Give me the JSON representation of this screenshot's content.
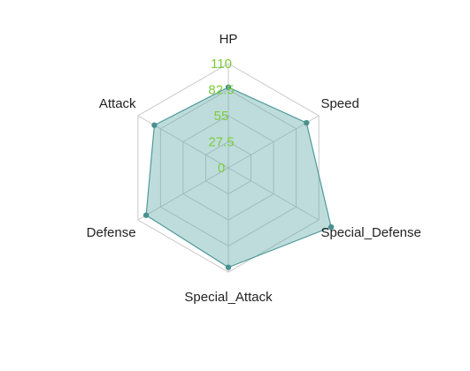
{
  "chart_data": {
    "type": "radar",
    "axes": [
      "HP",
      "Speed",
      "Special_Defense",
      "Special_Attack",
      "Defense",
      "Attack"
    ],
    "rlim": [
      0,
      110
    ],
    "ticks": [
      "0",
      "27.5",
      "55",
      "82.5",
      "110"
    ],
    "tick_values": [
      0,
      27.5,
      55,
      82.5,
      110
    ],
    "series": [
      {
        "values": [
          85,
          95,
          125,
          105,
          100,
          90
        ]
      }
    ],
    "grid": true,
    "colors": {
      "fill": "#5fa8a8",
      "stroke": "#4f9a9a",
      "point": "#4a9090",
      "grid": "#c8c8c8",
      "tick_label": "#7acc3a"
    }
  }
}
